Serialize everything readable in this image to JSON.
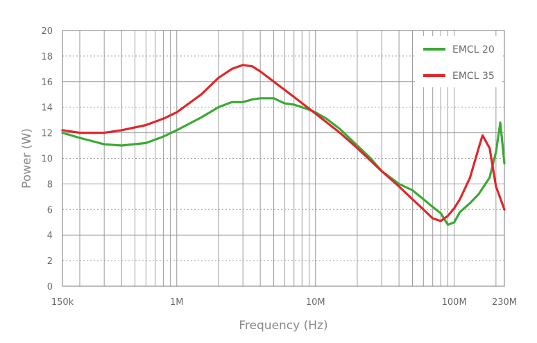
{
  "chart_data": {
    "type": "line",
    "xlabel": "Frequency (Hz)",
    "ylabel": "Power (W)",
    "xscale": "log",
    "xlim": [
      150000,
      230000000
    ],
    "ylim": [
      0,
      20
    ],
    "x_tick_values": [
      150000,
      1000000,
      10000000,
      100000000,
      230000000
    ],
    "x_tick_labels": [
      "150k",
      "1M",
      "10M",
      "100M",
      "230M"
    ],
    "y_ticks": [
      0,
      2,
      4,
      6,
      8,
      10,
      12,
      14,
      16,
      18,
      20
    ],
    "grid": true,
    "legend_position": "top-right",
    "series": [
      {
        "name": "EMCL 20",
        "color": "#3aaa35",
        "x": [
          150000,
          200000,
          300000,
          400000,
          600000,
          800000,
          1000000,
          1500000,
          2000000,
          2500000,
          3000000,
          3500000,
          4000000,
          5000000,
          6000000,
          7000000,
          8000000,
          9000000,
          10000000,
          12000000,
          15000000,
          20000000,
          25000000,
          30000000,
          40000000,
          50000000,
          60000000,
          70000000,
          80000000,
          90000000,
          100000000,
          110000000,
          130000000,
          150000000,
          180000000,
          200000000,
          215000000,
          230000000
        ],
        "values": [
          12.0,
          11.6,
          11.1,
          11.0,
          11.2,
          11.7,
          12.2,
          13.2,
          14.0,
          14.4,
          14.4,
          14.6,
          14.7,
          14.7,
          14.3,
          14.2,
          14.0,
          13.8,
          13.6,
          13.1,
          12.3,
          11.0,
          10.0,
          9.0,
          8.0,
          7.5,
          6.8,
          6.2,
          5.7,
          4.8,
          5.0,
          5.8,
          6.5,
          7.2,
          8.5,
          10.5,
          12.8,
          9.6
        ]
      },
      {
        "name": "EMCL 35",
        "color": "#e0262a",
        "x": [
          150000,
          200000,
          300000,
          400000,
          600000,
          800000,
          1000000,
          1500000,
          2000000,
          2500000,
          3000000,
          3500000,
          4000000,
          5000000,
          7000000,
          10000000,
          15000000,
          20000000,
          30000000,
          40000000,
          50000000,
          60000000,
          70000000,
          80000000,
          90000000,
          100000000,
          110000000,
          130000000,
          150000000,
          160000000,
          180000000,
          200000000,
          230000000
        ],
        "values": [
          12.2,
          12.0,
          12.0,
          12.2,
          12.6,
          13.1,
          13.6,
          15.0,
          16.3,
          17.0,
          17.3,
          17.2,
          16.8,
          16.0,
          14.8,
          13.5,
          12.0,
          10.8,
          9.0,
          7.8,
          6.8,
          6.0,
          5.3,
          5.1,
          5.5,
          6.1,
          6.8,
          8.5,
          10.8,
          11.8,
          10.8,
          7.8,
          6.0
        ]
      }
    ]
  }
}
